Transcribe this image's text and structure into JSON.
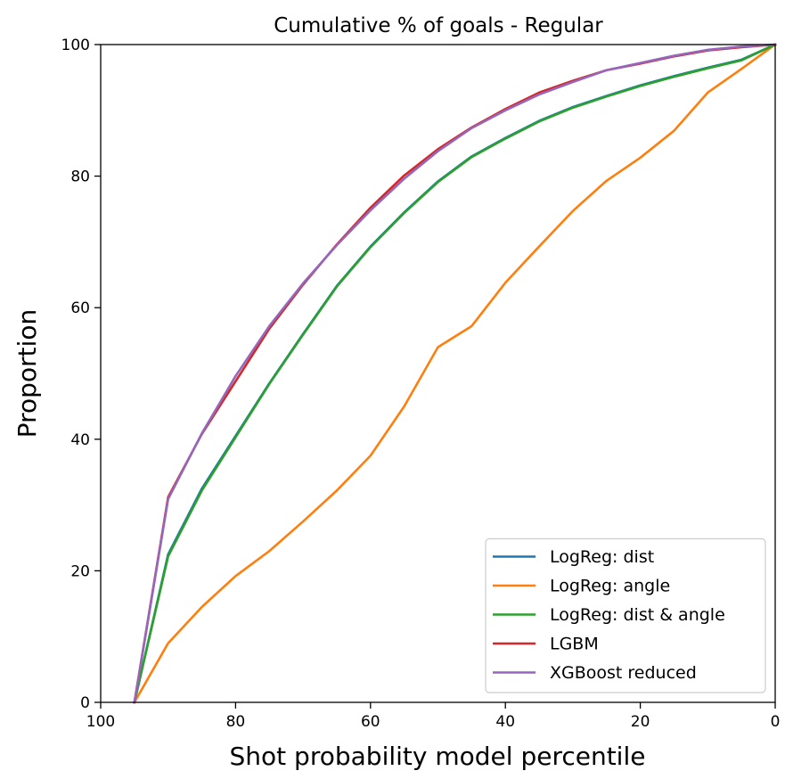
{
  "chart_data": {
    "type": "line",
    "title": "Cumulative % of goals - Regular",
    "xlabel": "Shot probability model percentile",
    "ylabel": "Proportion",
    "xlim": [
      100,
      0
    ],
    "ylim": [
      0,
      100
    ],
    "xticks": [
      100,
      80,
      60,
      40,
      20,
      0
    ],
    "yticks": [
      0,
      20,
      40,
      60,
      80,
      100
    ],
    "x": [
      95,
      90,
      85,
      80,
      75,
      70,
      65,
      60,
      55,
      50,
      45,
      40,
      35,
      30,
      25,
      20,
      15,
      10,
      5,
      0
    ],
    "series": [
      {
        "name": "LogReg: dist",
        "color": "#1f77b4",
        "values": [
          0,
          22.5,
          32.5,
          40.5,
          48.5,
          56,
          63.3,
          69.3,
          74.5,
          79.2,
          83,
          85.8,
          88.4,
          90.5,
          92.2,
          93.8,
          95.2,
          96.5,
          97.7,
          100
        ]
      },
      {
        "name": "LogReg: angle",
        "color": "#ff7f0e",
        "values": [
          0,
          9,
          14.5,
          19.2,
          23,
          27.5,
          32.2,
          37.5,
          45,
          54,
          57.2,
          63.8,
          69.3,
          74.7,
          79.3,
          82.8,
          86.9,
          92.7,
          96.3,
          100
        ]
      },
      {
        "name": "LogReg: dist & angle",
        "color": "#2ca02c",
        "values": [
          0,
          22.2,
          32.2,
          40.3,
          48.4,
          55.9,
          63.2,
          69.2,
          74.4,
          79.1,
          82.9,
          85.7,
          88.3,
          90.4,
          92.1,
          93.7,
          95.1,
          96.4,
          97.6,
          100
        ]
      },
      {
        "name": "LGBM",
        "color": "#d62728",
        "values": [
          0,
          31.2,
          40.8,
          48.8,
          56.8,
          63.5,
          69.6,
          75.2,
          80.1,
          84.1,
          87.4,
          90.2,
          92.7,
          94.5,
          96.1,
          97.1,
          98.2,
          99.1,
          99.6,
          100
        ]
      },
      {
        "name": "XGBoost reduced",
        "color": "#9467bd",
        "values": [
          0,
          30.9,
          40.9,
          49.6,
          57.2,
          63.7,
          69.5,
          74.8,
          79.6,
          83.8,
          87.3,
          90,
          92.4,
          94.3,
          96.1,
          97.2,
          98.3,
          99.2,
          99.7,
          100
        ]
      }
    ],
    "legend_position": "lower-right"
  }
}
